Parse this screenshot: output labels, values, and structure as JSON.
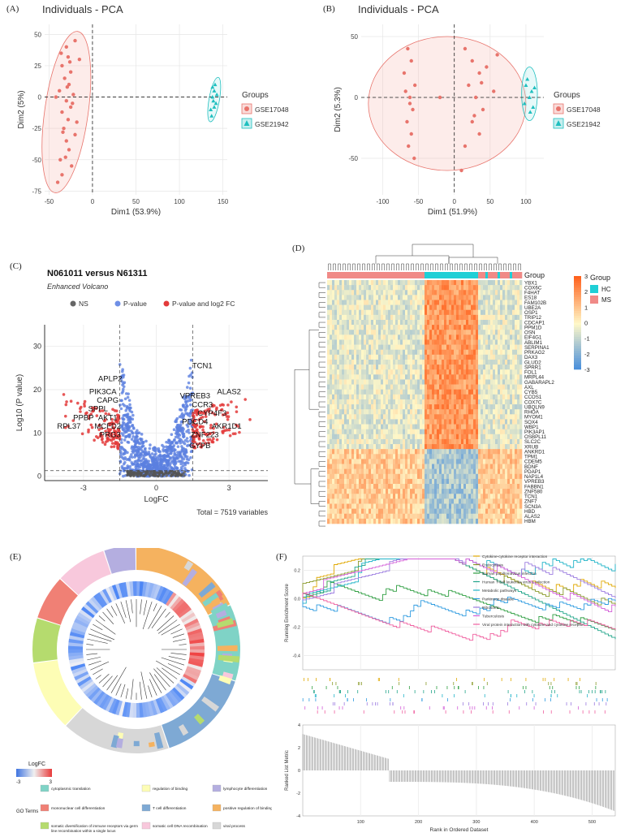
{
  "chart_data": [
    {
      "panel": "(A)",
      "type": "scatter",
      "title": "Individuals - PCA",
      "xlabel": "Dim1 (53.9%)",
      "ylabel": "Dim2 (5%)",
      "xticks": [
        -50,
        0,
        50,
        100,
        150
      ],
      "yticks": [
        -75,
        -50,
        -25,
        0,
        25,
        50
      ],
      "xlim": [
        -55,
        155
      ],
      "ylim": [
        -78,
        58
      ],
      "legend_title": "Groups",
      "legend_position": "right",
      "series": [
        {
          "name": "GSE17048",
          "color": "#e8746c",
          "shape": "circle",
          "points": [
            [
              -30,
              40
            ],
            [
              -28,
              32
            ],
            [
              -35,
              25
            ],
            [
              -25,
              20
            ],
            [
              -32,
              15
            ],
            [
              -27,
              10
            ],
            [
              -38,
              5
            ],
            [
              -22,
              2
            ],
            [
              -30,
              -3
            ],
            [
              -25,
              -8
            ],
            [
              -35,
              -12
            ],
            [
              -28,
              -18
            ],
            [
              -33,
              -25
            ],
            [
              -20,
              -30
            ],
            [
              -30,
              -35
            ],
            [
              -27,
              -42
            ],
            [
              -37,
              -50
            ],
            [
              -24,
              -55
            ],
            [
              -35,
              -62
            ],
            [
              -40,
              -68
            ],
            [
              -20,
              45
            ],
            [
              -15,
              30
            ],
            [
              -18,
              -20
            ],
            [
              -42,
              0
            ],
            [
              -36,
              35
            ],
            [
              -26,
              28
            ],
            [
              -31,
              -48
            ],
            [
              -23,
              -5
            ],
            [
              -29,
              8
            ],
            [
              -34,
              -28
            ]
          ]
        },
        {
          "name": "GSE21942",
          "color": "#1fbfbf",
          "shape": "triangle",
          "points": [
            [
              138,
              0
            ],
            [
              140,
              5
            ],
            [
              142,
              -5
            ],
            [
              136,
              -10
            ],
            [
              141,
              10
            ],
            [
              139,
              -3
            ],
            [
              137,
              -15
            ],
            [
              143,
              2
            ],
            [
              140,
              -8
            ],
            [
              138,
              8
            ]
          ]
        }
      ],
      "ellipse_centers": [
        [
          -30,
          -12
        ],
        [
          140,
          -2
        ]
      ]
    },
    {
      "panel": "(B)",
      "type": "scatter",
      "title": "Individuals - PCA",
      "xlabel": "Dim1 (51.9%)",
      "ylabel": "Dim2 (5.3%)",
      "xticks": [
        -100,
        -50,
        0,
        50,
        100
      ],
      "yticks": [
        -50,
        0,
        50
      ],
      "xlim": [
        -130,
        125
      ],
      "ylim": [
        -80,
        60
      ],
      "legend_title": "Groups",
      "legend_position": "right",
      "series": [
        {
          "name": "GSE17048",
          "color": "#e8746c",
          "shape": "circle",
          "points": [
            [
              -65,
              40
            ],
            [
              -60,
              30
            ],
            [
              -70,
              20
            ],
            [
              -55,
              10
            ],
            [
              -62,
              0
            ],
            [
              -58,
              -10
            ],
            [
              -66,
              -20
            ],
            [
              -60,
              -30
            ],
            [
              -64,
              -40
            ],
            [
              -56,
              -50
            ],
            [
              -68,
              5
            ],
            [
              -62,
              -5
            ],
            [
              -20,
              0
            ],
            [
              15,
              40
            ],
            [
              25,
              30
            ],
            [
              35,
              20
            ],
            [
              20,
              10
            ],
            [
              30,
              0
            ],
            [
              40,
              -10
            ],
            [
              25,
              -20
            ],
            [
              35,
              -30
            ],
            [
              15,
              -40
            ],
            [
              45,
              25
            ],
            [
              55,
              5
            ],
            [
              60,
              35
            ],
            [
              10,
              -60
            ],
            [
              28,
              -15
            ],
            [
              38,
              12
            ]
          ]
        },
        {
          "name": "GSE21942",
          "color": "#1fbfbf",
          "shape": "triangle",
          "points": [
            [
              100,
              10
            ],
            [
              105,
              0
            ],
            [
              110,
              -8
            ],
            [
              102,
              15
            ],
            [
              108,
              5
            ],
            [
              98,
              -5
            ],
            [
              106,
              -12
            ],
            [
              112,
              8
            ]
          ]
        }
      ]
    },
    {
      "panel": "(C)",
      "type": "scatter",
      "title": "N061011 versus N61311",
      "subtitle": "Enhanced Volcano",
      "xlabel": "LogFC",
      "ylabel": "Log10 (P value)",
      "xticks": [
        -3,
        0,
        3
      ],
      "yticks": [
        0,
        10,
        20,
        30
      ],
      "xlim": [
        -4.6,
        4.6
      ],
      "ylim": [
        -1,
        35
      ],
      "legend": [
        "NS",
        "P-value",
        "P-value and log2 FC"
      ],
      "legend_colors": [
        "#666666",
        "#6f8fe6",
        "#e33a3a"
      ],
      "caption": "Total = 7519 variables",
      "thresholds": {
        "x": [
          -1.5,
          1.5
        ],
        "y": 1.3
      },
      "labels": [
        {
          "text": "APLP2",
          "x": -1.9,
          "y": 22
        },
        {
          "text": "PIK3CA",
          "x": -2.2,
          "y": 19
        },
        {
          "text": "CAPG",
          "x": -2.0,
          "y": 17
        },
        {
          "text": "SPPL",
          "x": -2.4,
          "y": 15
        },
        {
          "text": "PPBP",
          "x": -3.0,
          "y": 13
        },
        {
          "text": "AKT1",
          "x": -2.0,
          "y": 13
        },
        {
          "text": "RPL37",
          "x": -3.6,
          "y": 11
        },
        {
          "text": "MCFD2",
          "x": -2.0,
          "y": 11
        },
        {
          "text": "PRG3",
          "x": -1.9,
          "y": 9
        },
        {
          "text": "TCN1",
          "x": 1.9,
          "y": 25
        },
        {
          "text": "ALAS2",
          "x": 3.0,
          "y": 19
        },
        {
          "text": "VPREB3",
          "x": 1.6,
          "y": 18
        },
        {
          "text": "CCR3",
          "x": 1.9,
          "y": 16
        },
        {
          "text": "CYP4F3",
          "x": 2.3,
          "y": 14
        },
        {
          "text": "PDCD4",
          "x": 1.6,
          "y": 12
        },
        {
          "text": "AKR1D1",
          "x": 2.9,
          "y": 11
        },
        {
          "text": "ZNF223",
          "x": 2.0,
          "y": 9
        },
        {
          "text": "GYPB",
          "x": 1.8,
          "y": 6.5
        }
      ]
    },
    {
      "panel": "(D)",
      "type": "heatmap",
      "annotation_label": "Group",
      "legend_title": "Group",
      "groups": [
        {
          "name": "HC",
          "color": "#1fcfd6"
        },
        {
          "name": "MS",
          "color": "#f08a87"
        }
      ],
      "color_scale_ticks": [
        3,
        2,
        1,
        0,
        -1,
        -2,
        -3
      ],
      "rows": [
        "YBX1",
        "COX6C",
        "F4HAT",
        "ES18",
        "FAM102B",
        "UBE2A",
        "OSP1",
        "TRIP12",
        "CDCAP1",
        "PPM1D",
        "OSN",
        "EIF4G1",
        "ABLIM1",
        "SERPINA1",
        "PRKAG2",
        "DAX3",
        "GLUD2",
        "SPRR1",
        "FOL1",
        "MRPL44",
        "GABARAPL2",
        "AXL",
        "CYB5",
        "CCOS1",
        "COX7C",
        "UBQLN9",
        "RHOA",
        "MYOM1",
        "SOX4",
        "WBP1",
        "PIK3AP1",
        "OSBPL11",
        "SLC2C",
        "XRUB",
        "ANKRD1",
        "TPM1",
        "CDEM5",
        "BDNF",
        "PDAP1",
        "NAP1L4",
        "VPREB3",
        "FABBN1",
        "ZNF580",
        "TCN1",
        "ZNF7",
        "SCN3A",
        "HBD",
        "ALAS2",
        "HBM"
      ]
    },
    {
      "panel": "(E)",
      "type": "other",
      "logfc_label": "LogFC",
      "logfc_range": [
        -3,
        3
      ],
      "go_label": "GO Terms",
      "go_terms": [
        {
          "name": "cytoplasmic translation",
          "color": "#7fd3c6"
        },
        {
          "name": "regulation of binding",
          "color": "#fdfdb5"
        },
        {
          "name": "lymphocyte differentiation",
          "color": "#b4aee0"
        },
        {
          "name": "mononuclear cell differentiation",
          "color": "#f08075"
        },
        {
          "name": "T cell differentiation",
          "color": "#7ea9d4"
        },
        {
          "name": "positive regulation of binding",
          "color": "#f5b25f"
        },
        {
          "name": "somatic diversification of immune receptors via germline recombination within a single locus",
          "color": "#b5db6e"
        },
        {
          "name": "somatic cell DNA recombination",
          "color": "#f8c8dc"
        },
        {
          "name": "viral process",
          "color": "#d7d7d7"
        }
      ]
    },
    {
      "panel": "(F)",
      "type": "line",
      "ylabel": "Running Enrichment Score",
      "ylabel2": "Ranked List Metric",
      "xlabel": "Rank in Ordered Dataset",
      "xticks": [
        100,
        200,
        300,
        400,
        500
      ],
      "yticks": [
        0.2,
        0.0,
        -0.2,
        -0.4
      ],
      "yticks2": [
        4,
        2,
        0,
        -2,
        -4
      ],
      "xlim": [
        0,
        540
      ],
      "series": [
        {
          "name": "Cytokine-cytokine receptor interaction",
          "color": "#e0a800"
        },
        {
          "name": "Endocytosis",
          "color": "#8a9a2a"
        },
        {
          "name": "Human papillomavirus infection",
          "color": "#2e9e40"
        },
        {
          "name": "Human T-cell leukemia virus 1 infection",
          "color": "#22a58a"
        },
        {
          "name": "Metabolic pathways",
          "color": "#1fb3c8"
        },
        {
          "name": "Parkinson disease",
          "color": "#2e9be0"
        },
        {
          "name": "Ribosome",
          "color": "#9b7be0"
        },
        {
          "name": "Tuberculosis",
          "color": "#d35fd8"
        },
        {
          "name": "Viral protein interaction with cytokine and cytokine receptor",
          "color": "#f060a0"
        }
      ]
    }
  ],
  "panels": {
    "a": "(A)",
    "b": "(B)",
    "c": "(C)",
    "d": "(D)",
    "e": "(E)",
    "f": "(F)"
  }
}
